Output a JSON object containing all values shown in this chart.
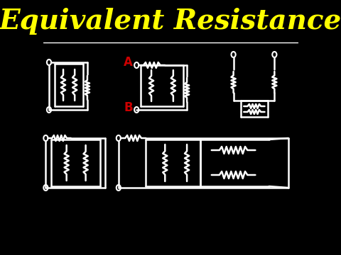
{
  "background_color": "#000000",
  "title": "Equivalent Resistance",
  "title_color": "#FFFF00",
  "title_fontsize": 28,
  "line_color": "#FFFFFF",
  "label_a_color": "#CC0000",
  "label_b_color": "#CC0000",
  "label_a": "A",
  "label_b": "B"
}
